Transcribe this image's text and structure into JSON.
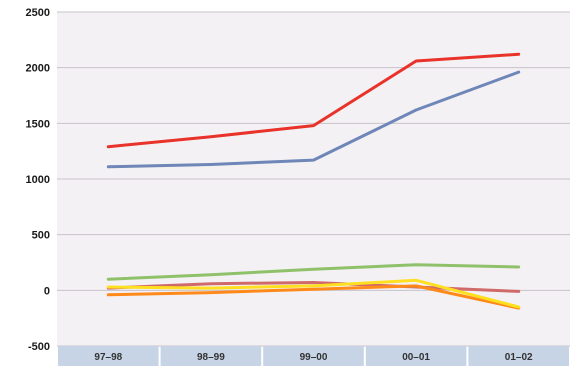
{
  "chart_data": {
    "type": "line",
    "categories": [
      "97–98",
      "98–99",
      "99–00",
      "00–01",
      "01–02"
    ],
    "ylim": [
      -500,
      2500
    ],
    "yticks": [
      "2500",
      "2000",
      "1500",
      "1000",
      "500",
      "0",
      "-500"
    ],
    "ytick_values": [
      2500,
      2000,
      1500,
      1000,
      500,
      0,
      -500
    ],
    "grid": true,
    "series": [
      {
        "color": "#e8322a",
        "values": [
          1290,
          1380,
          1480,
          2060,
          2120
        ]
      },
      {
        "color": "#6f86b8",
        "values": [
          1110,
          1130,
          1170,
          1620,
          1960
        ]
      },
      {
        "color": "#8fc16a",
        "values": [
          100,
          140,
          190,
          230,
          210
        ]
      },
      {
        "color": "#d06a6a",
        "values": [
          20,
          60,
          70,
          30,
          -10
        ]
      },
      {
        "color": "#ff8a1a",
        "values": [
          -40,
          -20,
          10,
          40,
          -160
        ]
      },
      {
        "color": "#ffe020",
        "values": [
          30,
          20,
          40,
          90,
          -150
        ]
      }
    ]
  },
  "colors": {
    "plot_background": "#f4f1f4",
    "grid": "#c8c3cc",
    "category_band": "#c6d4e6"
  }
}
